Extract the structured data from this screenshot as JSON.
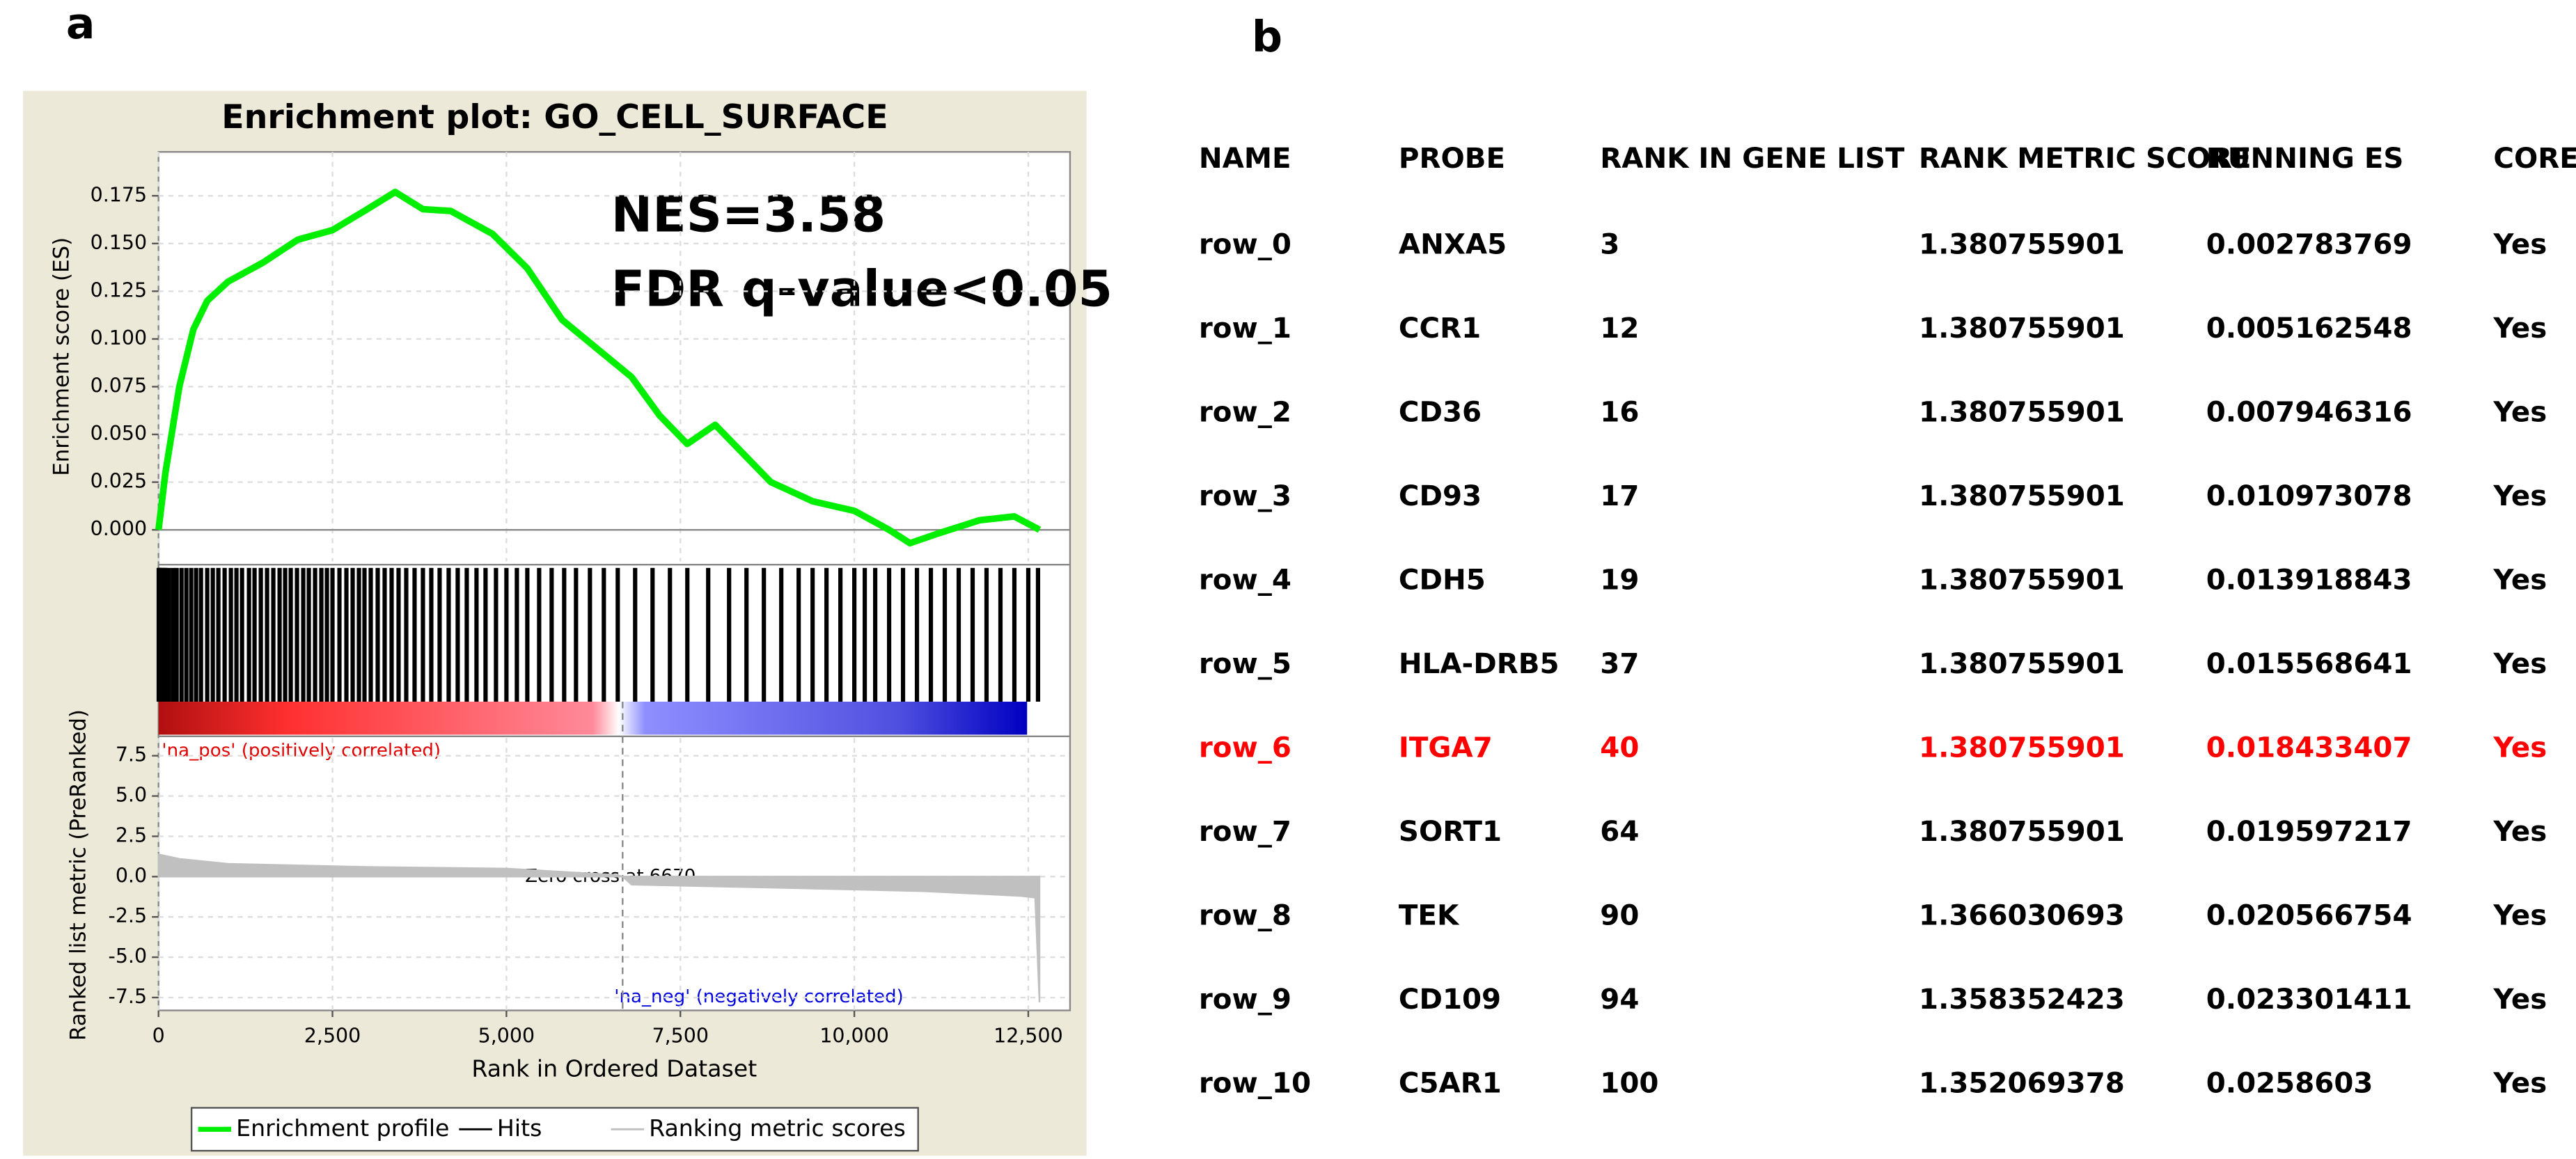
{
  "panel_labels": [
    "a",
    "b"
  ],
  "chart_data": {
    "type": "line",
    "title": "Enrichment plot: GO_CELL_SURFACE",
    "ylabel": "Enrichment score (ES)",
    "y2label": "Ranked list metric (PreRanked)",
    "xlabel": "Rank in Ordered Dataset",
    "annotations": [
      "NES=3.58",
      "FDR q-value<0.05"
    ],
    "pos_label": "'na_pos' (positively correlated)",
    "neg_label": "'na_neg' (negatively correlated)",
    "zero_cross_label": "Zero cross at 6670",
    "zero_cross": 6670,
    "xlim": [
      0,
      13100
    ],
    "xticks": [
      0,
      {
        "value": 2500,
        "label": "2,500"
      },
      {
        "value": 5000,
        "label": "5,000"
      },
      {
        "value": 7500,
        "label": "7,500"
      },
      {
        "value": 10000,
        "label": "10,000"
      },
      {
        "value": 12500,
        "label": "12,500"
      }
    ],
    "ylim": [
      -0.0165,
      0.198
    ],
    "yticks": [
      {
        "value": 0,
        "label": "0.000"
      },
      0.025,
      {
        "value": 0.05,
        "label": "0.050"
      },
      0.075,
      {
        "value": 0.1,
        "label": "0.100"
      },
      0.125,
      {
        "value": 0.15,
        "label": "0.150"
      },
      0.175
    ],
    "y2lim": [
      -8.3,
      8.6
    ],
    "y2ticks": [
      7.5,
      {
        "value": 5,
        "label": "5.0"
      },
      2.5,
      {
        "value": 0,
        "label": "0.0"
      },
      -2.5,
      {
        "value": -5,
        "label": "-5.0"
      },
      -7.5
    ],
    "grid": true,
    "hits_name": "Hits",
    "hits_color": "#000000",
    "hits": [
      3,
      12,
      16,
      17,
      19,
      37,
      40,
      64,
      90,
      94,
      100,
      150,
      210,
      260,
      330,
      400,
      470,
      540,
      610,
      700,
      780,
      860,
      950,
      1040,
      1120,
      1200,
      1300,
      1380,
      1470,
      1560,
      1650,
      1740,
      1820,
      1900,
      1990,
      2080,
      2160,
      2250,
      2340,
      2420,
      2500,
      2600,
      2700,
      2790,
      2880,
      2960,
      3050,
      3150,
      3250,
      3350,
      3450,
      3560,
      3680,
      3800,
      3920,
      4040,
      4170,
      4300,
      4430,
      4570,
      4700,
      4850,
      5000,
      5150,
      5300,
      5470,
      5650,
      5830,
      6000,
      6200,
      6400,
      6600,
      6850,
      7100,
      7350,
      7600,
      7900,
      8200,
      8450,
      8700,
      8950,
      9200,
      9400,
      9600,
      9800,
      10000,
      10150,
      10300,
      10500,
      10700,
      10900,
      11100,
      11300,
      11500,
      11700,
      11900,
      12100,
      12300,
      12500,
      12640
    ],
    "series": [
      {
        "name": "Enrichment profile",
        "color": "#00ee00",
        "x": [
          0,
          100,
          300,
          500,
          700,
          1000,
          1500,
          2000,
          2500,
          3000,
          3400,
          3800,
          4200,
          4800,
          5300,
          5800,
          6300,
          6800,
          7200,
          7600,
          8000,
          8400,
          8800,
          9400,
          10000,
          10500,
          10800,
          11200,
          11800,
          12300,
          12660
        ],
        "values": [
          0,
          0.03,
          0.075,
          0.105,
          0.12,
          0.13,
          0.14,
          0.152,
          0.157,
          0.168,
          0.177,
          0.168,
          0.167,
          0.155,
          0.137,
          0.11,
          0.095,
          0.08,
          0.06,
          0.045,
          0.055,
          0.04,
          0.025,
          0.015,
          0.01,
          0,
          -0.007,
          -0.002,
          0.005,
          0.007,
          0
        ]
      },
      {
        "name": "Ranking metric scores",
        "color": "#c0c0c0",
        "axis": "y2",
        "x": [
          0,
          300,
          1000,
          3000,
          5000,
          6600,
          6670,
          6800,
          9000,
          11000,
          12400,
          12600,
          12660
        ],
        "values": [
          1.38,
          1.1,
          0.8,
          0.6,
          0.5,
          0.1,
          0,
          -0.5,
          -0.7,
          -0.9,
          -1.2,
          -1.3,
          -7.8
        ]
      }
    ]
  },
  "table": {
    "header": [
      "NAME",
      "PROBE",
      "RANK IN GENE LIST",
      "RANK METRIC SCORE",
      "RUNNING ES",
      "CORE ENRIC"
    ],
    "highlight_row": 6,
    "highlight_color": "#ff0000",
    "rows": [
      [
        "row_0",
        "ANXA5",
        3,
        1.380755901,
        0.002783769,
        "Yes"
      ],
      [
        "row_1",
        "CCR1",
        12,
        1.380755901,
        0.005162548,
        "Yes"
      ],
      [
        "row_2",
        "CD36",
        16,
        1.380755901,
        0.007946316,
        "Yes"
      ],
      [
        "row_3",
        "CD93",
        17,
        1.380755901,
        0.010973078,
        "Yes"
      ],
      [
        "row_4",
        "CDH5",
        19,
        1.380755901,
        0.013918843,
        "Yes"
      ],
      [
        "row_5",
        "HLA-DRB5",
        37,
        1.380755901,
        0.015568641,
        "Yes"
      ],
      [
        "row_6",
        "ITGA7",
        40,
        1.380755901,
        0.018433407,
        "Yes"
      ],
      [
        "row_7",
        "SORT1",
        64,
        1.380755901,
        0.019597217,
        "Yes"
      ],
      [
        "row_8",
        "TEK",
        90,
        1.366030693,
        0.020566754,
        "Yes"
      ],
      [
        "row_9",
        "CD109",
        94,
        1.358352423,
        0.023301411,
        "Yes"
      ],
      [
        "row_10",
        "C5AR1",
        100,
        1.352069378,
        0.0258603,
        "Yes"
      ]
    ]
  }
}
